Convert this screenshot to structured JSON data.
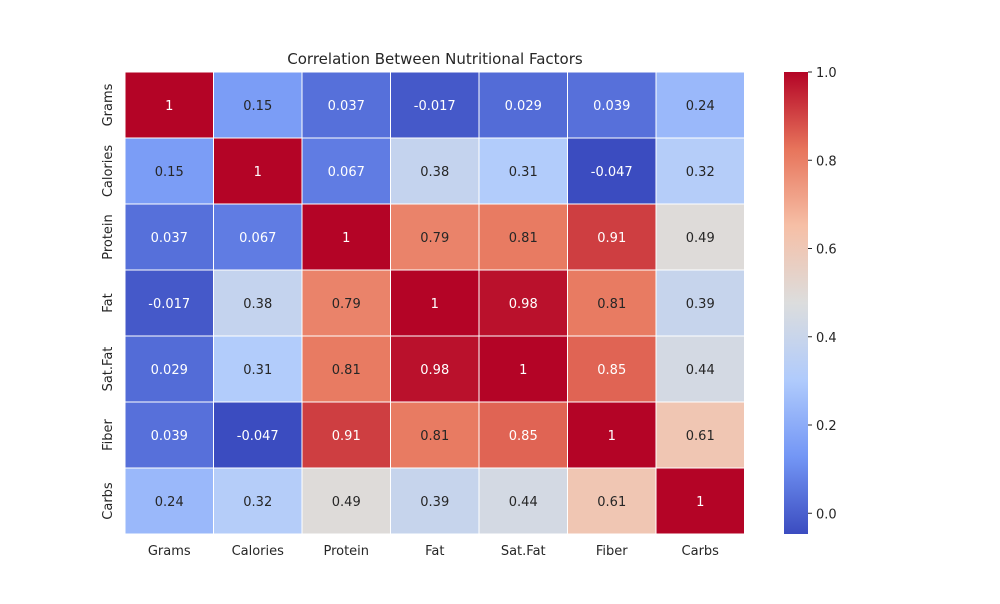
{
  "chart_data": {
    "type": "heatmap",
    "title": "Correlation Between Nutritional Factors",
    "rows": [
      "Grams",
      "Calories",
      "Protein",
      "Fat",
      "Sat.Fat",
      "Fiber",
      "Carbs"
    ],
    "columns": [
      "Grams",
      "Calories",
      "Protein",
      "Fat",
      "Sat.Fat",
      "Fiber",
      "Carbs"
    ],
    "values": [
      [
        1,
        0.15,
        0.037,
        -0.017,
        0.029,
        0.039,
        0.24
      ],
      [
        0.15,
        1,
        0.067,
        0.38,
        0.31,
        -0.047,
        0.32
      ],
      [
        0.037,
        0.067,
        1,
        0.79,
        0.81,
        0.91,
        0.49
      ],
      [
        -0.017,
        0.38,
        0.79,
        1,
        0.98,
        0.81,
        0.39
      ],
      [
        0.029,
        0.31,
        0.81,
        0.98,
        1,
        0.85,
        0.44
      ],
      [
        0.039,
        -0.047,
        0.91,
        0.81,
        0.85,
        1,
        0.61
      ],
      [
        0.24,
        0.32,
        0.49,
        0.39,
        0.44,
        0.61,
        1
      ]
    ],
    "value_labels": [
      [
        "1",
        "0.15",
        "0.037",
        "-0.017",
        "0.029",
        "0.039",
        "0.24"
      ],
      [
        "0.15",
        "1",
        "0.067",
        "0.38",
        "0.31",
        "-0.047",
        "0.32"
      ],
      [
        "0.037",
        "0.067",
        "1",
        "0.79",
        "0.81",
        "0.91",
        "0.49"
      ],
      [
        "-0.017",
        "0.38",
        "0.79",
        "1",
        "0.98",
        "0.81",
        "0.39"
      ],
      [
        "0.029",
        "0.31",
        "0.81",
        "0.98",
        "1",
        "0.85",
        "0.44"
      ],
      [
        "0.039",
        "-0.047",
        "0.91",
        "0.81",
        "0.85",
        "1",
        "0.61"
      ],
      [
        "0.24",
        "0.32",
        "0.49",
        "0.39",
        "0.44",
        "0.61",
        "1"
      ]
    ],
    "colormap": "coolwarm",
    "colormap_stops": [
      "#3b4cc0",
      "#7396f5",
      "#b0cbfc",
      "#dcdddd",
      "#f6bfa6",
      "#e7745b",
      "#b40426"
    ],
    "color_range": [
      -0.047,
      1
    ],
    "colorbar_ticks": [
      0.0,
      0.2,
      0.4,
      0.6,
      0.8,
      1.0
    ],
    "colorbar_tick_labels": [
      "0.0",
      "0.2",
      "0.4",
      "0.6",
      "0.8",
      "1.0"
    ],
    "grid": false
  }
}
